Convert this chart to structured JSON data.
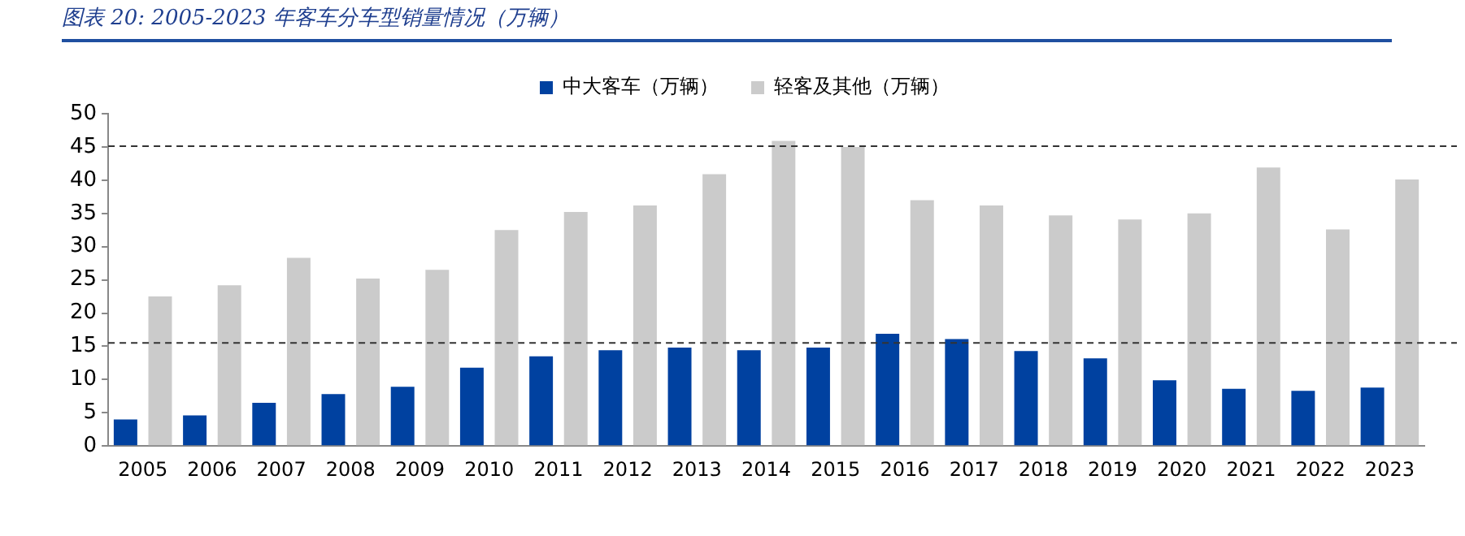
{
  "chart_data": {
    "type": "bar",
    "title": "图表 20:  2005-2023 年客车分车型销量情况（万辆）",
    "categories": [
      "2005",
      "2006",
      "2007",
      "2008",
      "2009",
      "2010",
      "2011",
      "2012",
      "2013",
      "2014",
      "2015",
      "2016",
      "2017",
      "2018",
      "2019",
      "2020",
      "2021",
      "2022",
      "2023"
    ],
    "series": [
      {
        "name": "中大客车（万辆）",
        "color": "#0041a0",
        "values": [
          4.0,
          4.6,
          6.5,
          7.8,
          8.9,
          11.8,
          13.5,
          14.4,
          14.8,
          14.4,
          14.8,
          16.9,
          16.1,
          14.3,
          13.2,
          9.9,
          8.6,
          8.3,
          8.8
        ]
      },
      {
        "name": "轻客及其他（万辆）",
        "color": "#cbcbcb",
        "values": [
          22.5,
          24.2,
          28.3,
          25.2,
          26.5,
          32.5,
          35.2,
          36.2,
          40.9,
          45.9,
          45.0,
          37.0,
          36.2,
          34.7,
          34.1,
          35.0,
          41.9,
          32.6,
          40.1
        ]
      }
    ],
    "ylim": [
      0,
      50
    ],
    "yticks": [
      0,
      5,
      10,
      15,
      20,
      25,
      30,
      35,
      40,
      45,
      50
    ],
    "ref_lines": [
      {
        "axis": "y",
        "value": 45.1,
        "line_style": "dashed",
        "color": "#333333"
      },
      {
        "axis": "y",
        "value": 15.5,
        "line_style": "dashed",
        "color": "#333333"
      }
    ],
    "legend": "top",
    "grid": false
  }
}
